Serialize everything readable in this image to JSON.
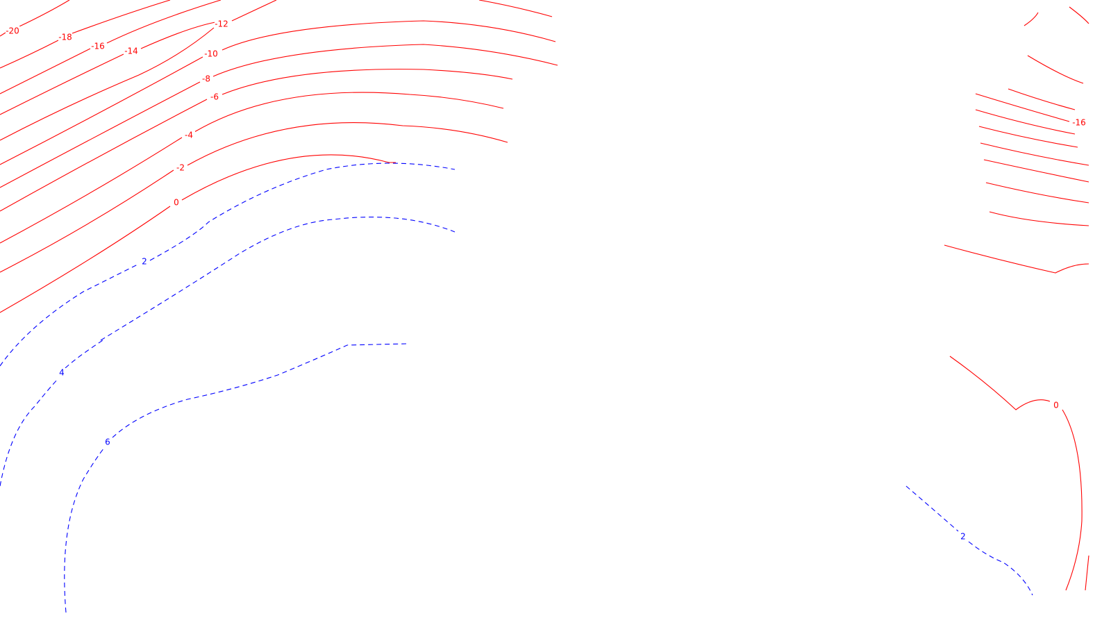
{
  "map": {
    "title": "",
    "colors": {
      "negative": "#ff0000",
      "positive": "#0000ff",
      "background": "#ffffff"
    },
    "contour_labels": {
      "neg20": "-20",
      "neg18": "-18",
      "neg16": "-16",
      "neg14": "-14",
      "neg12": "-12",
      "neg10": "-10",
      "neg8": "-8",
      "neg6": "-6",
      "neg4": "-4",
      "neg2": "-2",
      "zero_west": "0",
      "pos2_west": "2",
      "pos4": "4",
      "pos6": "6",
      "neg16_east": "-16",
      "zero_east": "0",
      "pos2_east": "2"
    }
  }
}
